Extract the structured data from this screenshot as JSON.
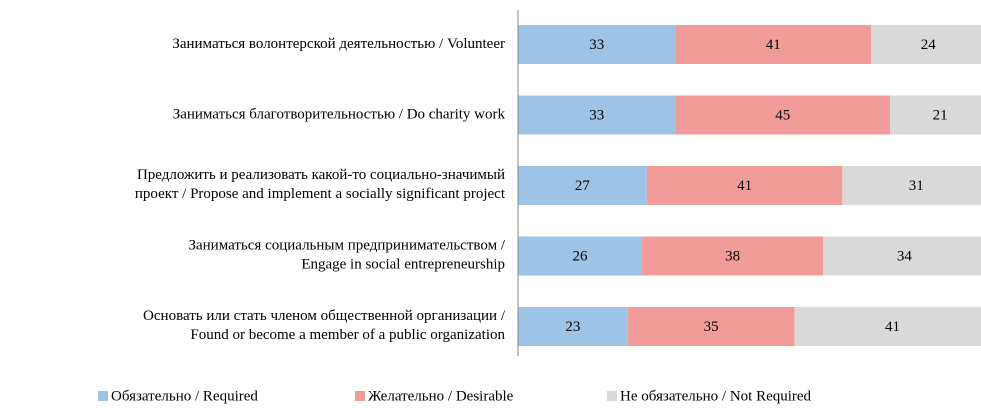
{
  "chart_data": {
    "type": "stacked_bar_horizontal",
    "categories": [
      "Заниматься волонтерской деятельностью /  Volunteer",
      "Заниматься благотворительностью / Do charity work",
      "Предложить и реализовать какой-то социально-значимый\nпроект / Propose and implement a socially significant project",
      "Заниматься социальным предпринимательством /\nEngage in social entrepreneurship",
      "Основать или стать членом общественной организации /\nFound or become a member of a public organization"
    ],
    "series": [
      {
        "name": "Обязательно / Required",
        "color": "#9dc3e6",
        "values": [
          33,
          33,
          27,
          26,
          23
        ]
      },
      {
        "name": "Желательно / Desirable",
        "color": "#f19c99",
        "values": [
          41,
          45,
          41,
          38,
          35
        ]
      },
      {
        "name": "Не обязательно / Not Required",
        "color": "#d9d9d9",
        "values": [
          24,
          21,
          31,
          34,
          41
        ]
      }
    ],
    "xlim": [
      0,
      100
    ],
    "legend": "bottom"
  }
}
